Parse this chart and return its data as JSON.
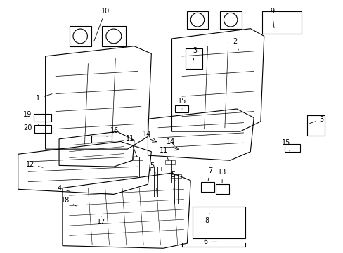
{
  "bg_color": "#ffffff",
  "line_color": "#000000",
  "text_color": "#000000"
}
